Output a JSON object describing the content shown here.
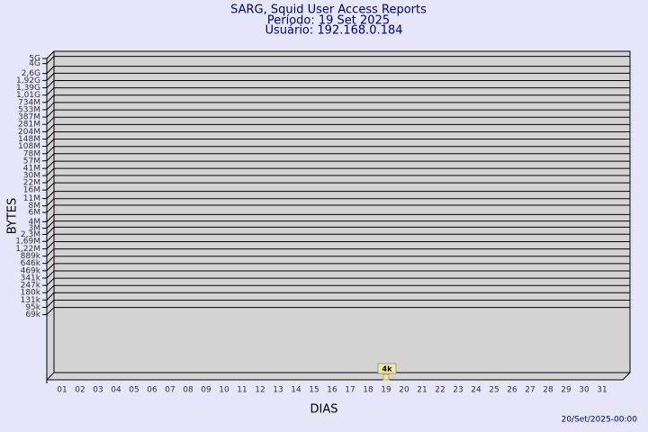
{
  "chart_data": {
    "type": "scatter",
    "title": "SARG, Squid User Access Reports",
    "subtitle": [
      "Período: 19 Set 2025",
      "Usuário: 192.168.0.184"
    ],
    "xlabel": "DIAS",
    "ylabel": "BYTES",
    "footer": "20/Set/2025-00:00",
    "categories": [
      "01",
      "02",
      "03",
      "04",
      "05",
      "06",
      "07",
      "08",
      "09",
      "10",
      "11",
      "12",
      "13",
      "14",
      "15",
      "16",
      "17",
      "18",
      "19",
      "20",
      "21",
      "22",
      "23",
      "24",
      "25",
      "26",
      "27",
      "28",
      "29",
      "30",
      "31"
    ],
    "values": [
      null,
      null,
      null,
      null,
      null,
      null,
      null,
      null,
      null,
      null,
      null,
      null,
      null,
      null,
      null,
      null,
      null,
      null,
      4000,
      null,
      null,
      null,
      null,
      null,
      null,
      null,
      null,
      null,
      null,
      null,
      null
    ],
    "value_labels": [
      null,
      null,
      null,
      null,
      null,
      null,
      null,
      null,
      null,
      null,
      null,
      null,
      null,
      null,
      null,
      null,
      null,
      null,
      "4k",
      null,
      null,
      null,
      null,
      null,
      null,
      null,
      null,
      null,
      null,
      null,
      null
    ],
    "color": "#f5e89a",
    "yscale": "log",
    "ylim": [
      4000,
      5000000000
    ],
    "yticks": [
      {
        "value": 5000000000,
        "label": "5G"
      },
      {
        "value": 4000000000,
        "label": "4G"
      },
      {
        "value": 2600000000,
        "label": "2,6G"
      },
      {
        "value": 1920000000,
        "label": "1,92G"
      },
      {
        "value": 1390000000,
        "label": "1,39G"
      },
      {
        "value": 1010000000,
        "label": "1,01G"
      },
      {
        "value": 734000000,
        "label": "734M"
      },
      {
        "value": 533000000,
        "label": "533M"
      },
      {
        "value": 387000000,
        "label": "387M"
      },
      {
        "value": 281000000,
        "label": "281M"
      },
      {
        "value": 204000000,
        "label": "204M"
      },
      {
        "value": 148000000,
        "label": "148M"
      },
      {
        "value": 108000000,
        "label": "108M"
      },
      {
        "value": 78000000,
        "label": "78M"
      },
      {
        "value": 57000000,
        "label": "57M"
      },
      {
        "value": 41000000,
        "label": "41M"
      },
      {
        "value": 30000000,
        "label": "30M"
      },
      {
        "value": 22000000,
        "label": "22M"
      },
      {
        "value": 16000000,
        "label": "16M"
      },
      {
        "value": 11000000,
        "label": "11M"
      },
      {
        "value": 8000000,
        "label": "8M"
      },
      {
        "value": 6000000,
        "label": "6M"
      },
      {
        "value": 4000000,
        "label": "4M"
      },
      {
        "value": 3000000,
        "label": "3M"
      },
      {
        "value": 2300000,
        "label": "2,3M"
      },
      {
        "value": 1690000,
        "label": "1,69M"
      },
      {
        "value": 1220000,
        "label": "1,22M"
      },
      {
        "value": 889000,
        "label": "889k"
      },
      {
        "value": 646000,
        "label": "646k"
      },
      {
        "value": 469000,
        "label": "469k"
      },
      {
        "value": 341000,
        "label": "341k"
      },
      {
        "value": 247000,
        "label": "247k"
      },
      {
        "value": 180000,
        "label": "180k"
      },
      {
        "value": 131000,
        "label": "131k"
      },
      {
        "value": 95000,
        "label": "95k"
      },
      {
        "value": 69000,
        "label": "69k"
      }
    ],
    "grid": true
  }
}
